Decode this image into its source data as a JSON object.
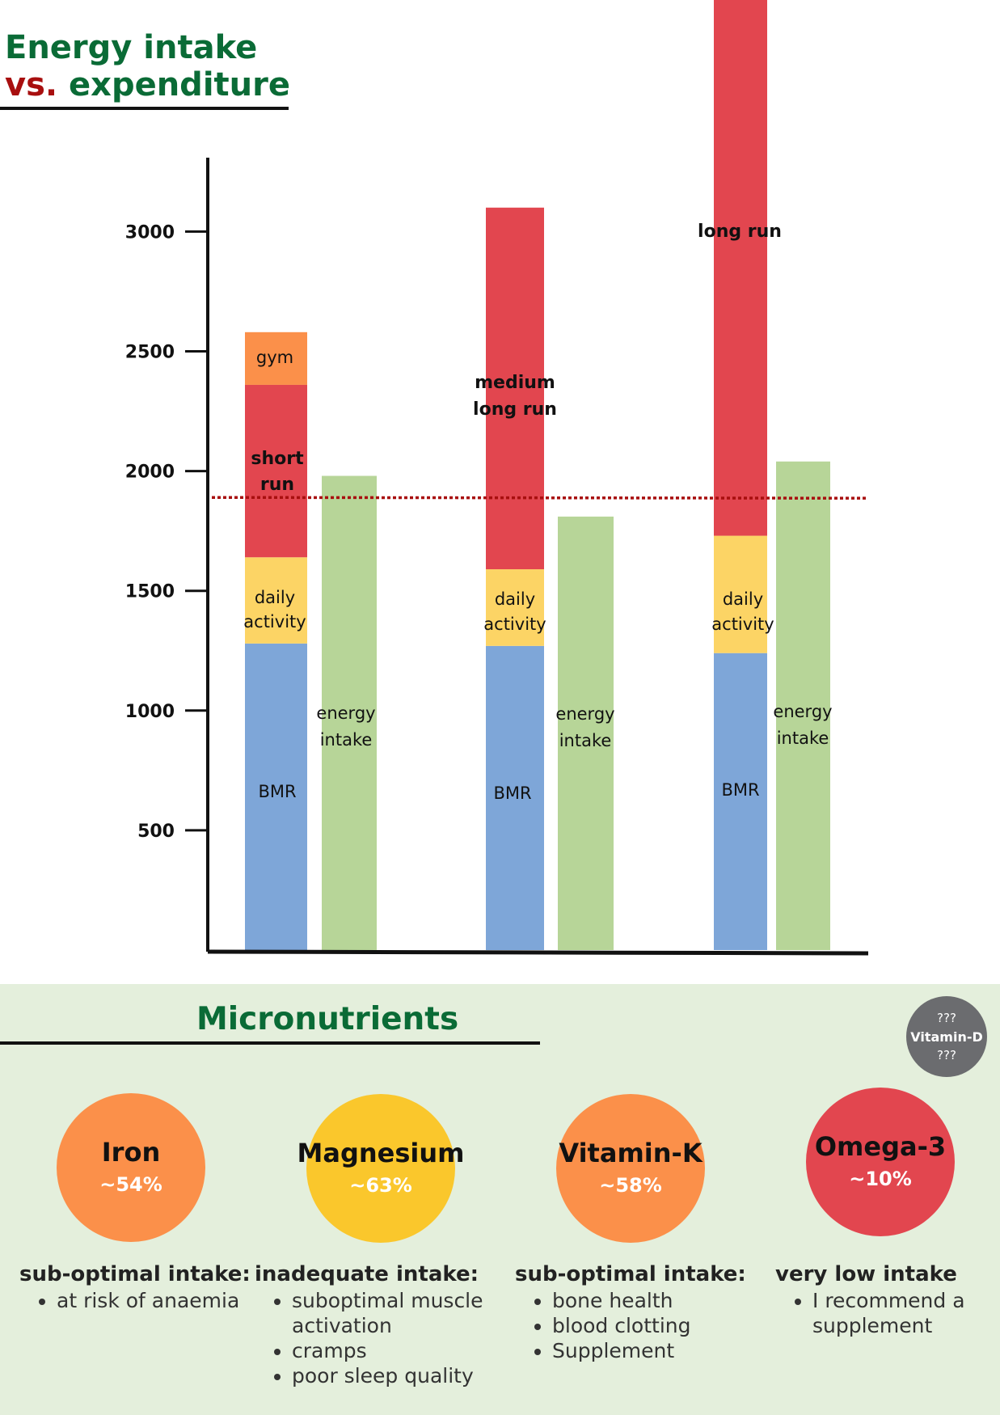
{
  "header": {
    "title_line1": "Energy intake",
    "title_vs": "vs.",
    "title_line2": "expenditure"
  },
  "colors": {
    "bmr": "#7ea6d8",
    "daily_activity": "#fcd465",
    "run": "#e2464f",
    "gym": "#fb904a",
    "energy_intake": "#b7d598",
    "reference_line": "#a80f0f",
    "micro_bg": "#e4efdc"
  },
  "chart_data": {
    "type": "bar",
    "stacked": true,
    "yticks": [
      500,
      1000,
      1500,
      2000,
      2500,
      3000
    ],
    "ylim": [
      0,
      3300
    ],
    "reference_line": 1890,
    "groups": [
      {
        "expenditure": [
          {
            "label": "BMR",
            "from": 0,
            "to": 1280,
            "color_key": "bmr"
          },
          {
            "label": "daily activity",
            "from": 1280,
            "to": 1640,
            "color_key": "daily_activity"
          },
          {
            "label": "short run",
            "from": 1640,
            "to": 2360,
            "color_key": "run"
          },
          {
            "label": "gym",
            "from": 2360,
            "to": 2580,
            "color_key": "gym"
          }
        ],
        "intake": {
          "label": "energy intake",
          "value": 1980
        }
      },
      {
        "expenditure": [
          {
            "label": "BMR",
            "from": 0,
            "to": 1270,
            "color_key": "bmr"
          },
          {
            "label": "daily activity",
            "from": 1270,
            "to": 1590,
            "color_key": "daily_activity"
          },
          {
            "label": "medium long run",
            "from": 1590,
            "to": 3100,
            "color_key": "run"
          }
        ],
        "intake": {
          "label": "energy intake",
          "value": 1810
        }
      },
      {
        "expenditure": [
          {
            "label": "BMR",
            "from": 0,
            "to": 1240,
            "color_key": "bmr"
          },
          {
            "label": "daily activity",
            "from": 1240,
            "to": 1730,
            "color_key": "daily_activity"
          },
          {
            "label": "long run",
            "from": 1730,
            "to": 3980,
            "color_key": "run"
          }
        ],
        "intake": {
          "label": "energy intake",
          "value": 2040
        }
      }
    ]
  },
  "micronutrients": {
    "title": "Micronutrients",
    "badge": {
      "top": "???",
      "name": "Vitamin-D",
      "bottom": "???"
    },
    "items": [
      {
        "name": "Iron",
        "percent": "~54%",
        "color": "#fb904a",
        "heading": "sub-optimal intake:",
        "points": [
          "at risk of anaemia"
        ]
      },
      {
        "name": "Magnesium",
        "percent": "~63%",
        "color": "#fac72c",
        "heading": "inadequate intake:",
        "points": [
          "suboptimal muscle activation",
          "cramps",
          "poor sleep quality"
        ]
      },
      {
        "name": "Vitamin-K",
        "percent": "~58%",
        "color": "#fb904a",
        "heading": "sub-optimal intake:",
        "points": [
          "bone health",
          "blood clotting",
          "Supplement"
        ]
      },
      {
        "name": "Omega-3",
        "percent": "~10%",
        "color": "#e2464f",
        "heading": "very low intake",
        "points": [
          "I recommend a supplement"
        ]
      }
    ]
  }
}
